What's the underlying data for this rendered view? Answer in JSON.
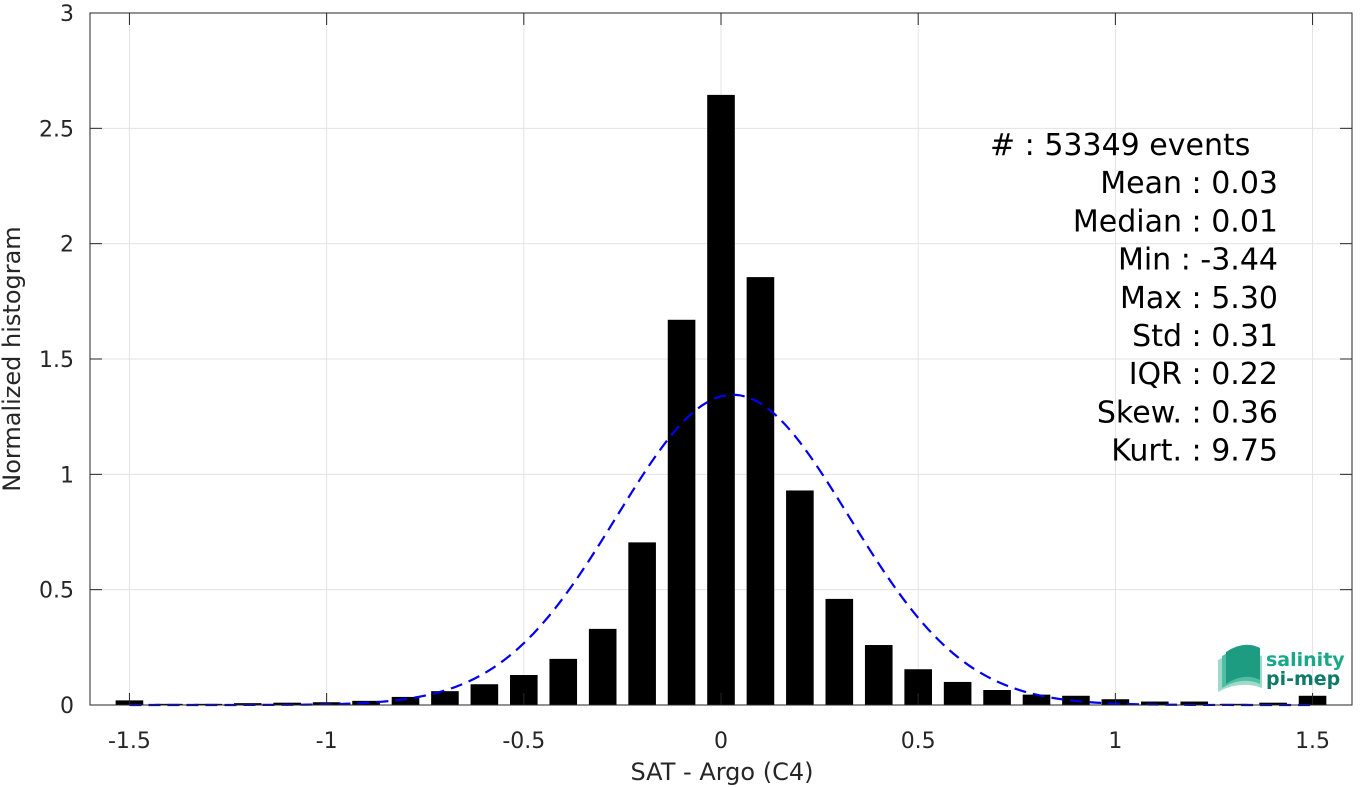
{
  "chart_data": {
    "type": "bar",
    "xlabel": "SAT - Argo (C4)",
    "ylabel": "Normalized histogram",
    "xlim": [
      -1.6,
      1.6
    ],
    "ylim": [
      0,
      3
    ],
    "xticks": [
      -1.5,
      -1,
      -0.5,
      0,
      0.5,
      1,
      1.5
    ],
    "xtick_labels": [
      "-1.5",
      "-1",
      "-0.5",
      "0",
      "0.5",
      "1",
      "1.5"
    ],
    "yticks": [
      0,
      0.5,
      1,
      1.5,
      2,
      2.5,
      3
    ],
    "ytick_labels": [
      "0",
      "0.5",
      "1",
      "1.5",
      "2",
      "2.5",
      "3"
    ],
    "grid": true,
    "bar_color": "#000000",
    "bins": [
      -1.5,
      -1.4,
      -1.3,
      -1.2,
      -1.1,
      -1.0,
      -0.9,
      -0.8,
      -0.7,
      -0.6,
      -0.5,
      -0.4,
      -0.3,
      -0.2,
      -0.1,
      0.0,
      0.1,
      0.2,
      0.3,
      0.4,
      0.5,
      0.6,
      0.7,
      0.8,
      0.9,
      1.0,
      1.1,
      1.2,
      1.3,
      1.4,
      1.5
    ],
    "values": [
      0.02,
      0.005,
      0.005,
      0.008,
      0.01,
      0.012,
      0.018,
      0.035,
      0.06,
      0.09,
      0.13,
      0.2,
      0.33,
      0.705,
      1.67,
      2.645,
      1.855,
      0.93,
      0.46,
      0.26,
      0.155,
      0.1,
      0.065,
      0.045,
      0.04,
      0.025,
      0.015,
      0.015,
      0.005,
      0.01,
      0.04
    ],
    "fit": {
      "type": "normal",
      "color": "#0000ee",
      "style": "dashed",
      "mean": 0.03,
      "std": 0.295,
      "peak": 1.345,
      "x_range": [
        -1.5,
        1.5
      ]
    },
    "annotations": [
      {
        "label": "#  :",
        "value": "53349 events"
      },
      {
        "label": "Mean :",
        "value": "0.03"
      },
      {
        "label": "Median :",
        "value": "0.01"
      },
      {
        "label": "Min :",
        "value": "-3.44"
      },
      {
        "label": "Max :",
        "value": "5.30"
      },
      {
        "label": "Std :",
        "value": "0.31"
      },
      {
        "label": "IQR :",
        "value": "0.22"
      },
      {
        "label": "Skew. :",
        "value": "0.36"
      },
      {
        "label": "Kurt. :",
        "value": "9.75"
      }
    ]
  },
  "logo": {
    "line1": "salinity",
    "line2": "pi-mep",
    "color1": "#1aa88a",
    "color2": "#0f7a6a",
    "icon": "salinity-waves-icon"
  }
}
